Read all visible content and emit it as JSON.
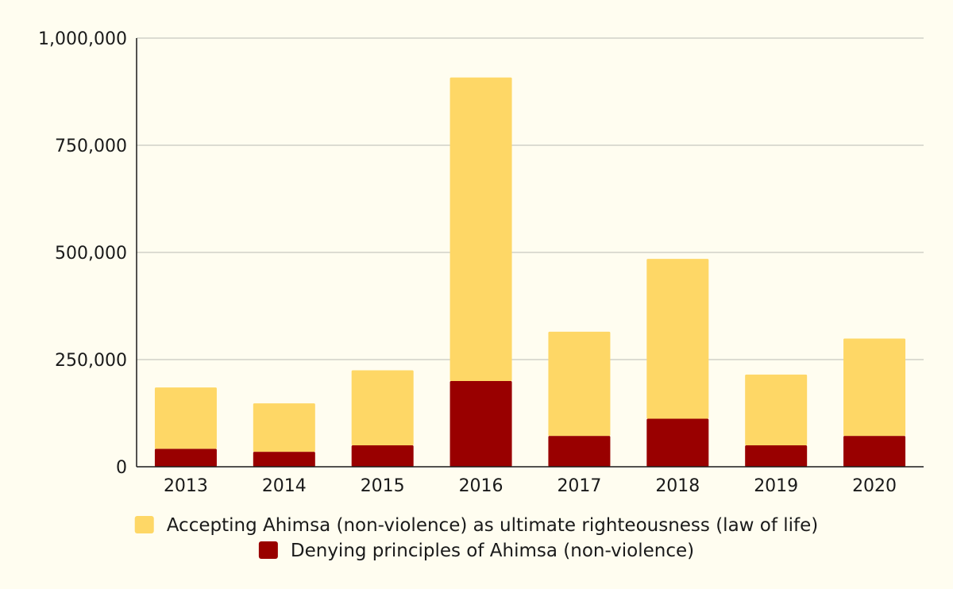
{
  "chart_data": {
    "type": "bar",
    "stacked": true,
    "categories": [
      "2013",
      "2014",
      "2015",
      "2016",
      "2017",
      "2018",
      "2019",
      "2020"
    ],
    "series": [
      {
        "name": "Denying principles of Ahimsa (non-violence)",
        "color": "#990000",
        "values": [
          42000,
          35000,
          50000,
          200000,
          72000,
          112000,
          50000,
          72000
        ]
      },
      {
        "name": "Accepting Ahimsa (non-violence) as ultimate righteousness (law of life)",
        "color": "#fed766",
        "values": [
          143000,
          113000,
          175000,
          708000,
          243000,
          373000,
          165000,
          227000
        ]
      }
    ],
    "ylim": [
      0,
      1000000
    ],
    "yticks": [
      0,
      250000,
      500000,
      750000,
      1000000
    ],
    "ytick_labels": [
      "0",
      "250,000",
      "500,000",
      "750,000",
      "1,000,000"
    ],
    "legend": {
      "placement": "bottom",
      "entries": [
        "Accepting Ahimsa (non-violence) as ultimate righteousness (law of life)",
        "Denying principles of Ahimsa (non-violence)"
      ]
    },
    "grid": true,
    "background": "#fffdf0",
    "grid_color": "#c8c8c0",
    "axis_color": "#1a1a1a"
  }
}
